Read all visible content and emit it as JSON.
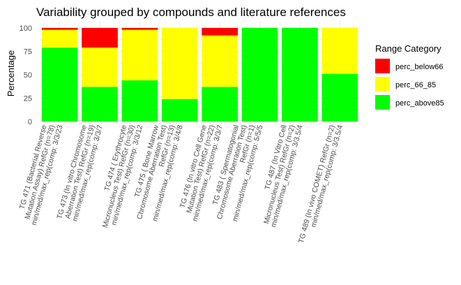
{
  "chart_data": {
    "type": "bar",
    "stacked": true,
    "title": "Variability grouped by compounds and literature references",
    "ylabel": "Percentage",
    "xlabel": "",
    "ylim": [
      0,
      100
    ],
    "yticks": [
      "0",
      "25",
      "50",
      "75",
      "100"
    ],
    "grid": true,
    "legend_position": "right",
    "legend_title": "Range Category",
    "categories": [
      [
        "TG 471 (Bacterial Reverse",
        "Mutation Assay) RefGr (n=78)",
        "min/med/max_rep(comp: 3/3/23"
      ],
      [
        "TG 473 (In vitro Chromosome",
        "Aberration Test) RefGr (n=19)",
        "min/med/max_rep(comp: 3/3/7"
      ],
      [
        "TG 474 ( Erythrocyte",
        "Micronucleus Test) RefGr (n=30)",
        "min/med/max_rep(comp: 3/3/12"
      ],
      [
        "TG 475 ( Bone Marrow",
        "Chromosome Aberration Test)",
        "RefGr (n=13)",
        "min/med/max_rep(comp: 3/4/8"
      ],
      [
        "TG 476 (In vitro Cell Gene",
        "Mutation Test) RefGr (n=22)",
        "min/med/max_rep(comp: 3/3/7"
      ],
      [
        "TG 483 ( Spermatogonial",
        "Chromosome Aberration Test)",
        "RefGr (n=1)",
        "min/med/max_rep(comp: 5/5/5"
      ],
      [
        "TG 487 (In Vitro Cell",
        "Micronucleus Test) RefGr (n=2)",
        "min/med/max_rep(comp: 3/3.5/4"
      ],
      [
        "TG 489 (In vivo COMET) RefGr (n=2)",
        "min/med/max_rep(comp: 3/3.5/4"
      ]
    ],
    "series": [
      {
        "name": "perc_above85",
        "color": "#00ff00",
        "values": [
          79,
          37,
          44,
          24,
          37,
          100,
          100,
          51
        ]
      },
      {
        "name": "perc_66_85",
        "color": "#ffff00",
        "values": [
          19,
          42,
          54,
          76,
          55,
          0,
          0,
          49
        ]
      },
      {
        "name": "perc_below66",
        "color": "#ff0000",
        "values": [
          2,
          21,
          2,
          0,
          8,
          0,
          0,
          0
        ]
      }
    ],
    "legend_order": [
      "perc_below66",
      "perc_66_85",
      "perc_above85"
    ]
  }
}
